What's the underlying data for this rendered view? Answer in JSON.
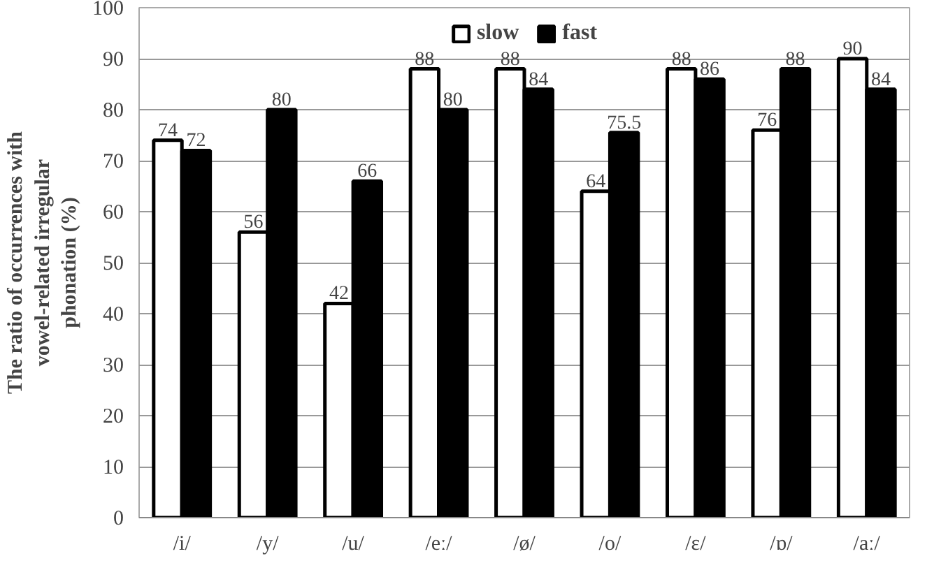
{
  "chart_data": {
    "type": "bar",
    "ylabel": "The ratio of occurrences with\nvowel-related irregular\nphonation (%)",
    "categories": [
      "/i/",
      "/y/",
      "/u/",
      "/eː/",
      "/ø/",
      "/o/",
      "/ɛ/",
      "/ɒ/",
      "/aː/"
    ],
    "series": [
      {
        "name": "slow",
        "color": "#ffffff",
        "values": [
          74,
          56,
          42,
          88,
          88,
          64,
          88,
          76,
          90
        ]
      },
      {
        "name": "fast",
        "color": "#000000",
        "values": [
          72,
          80,
          66,
          80,
          84,
          75.5,
          86,
          88,
          84
        ]
      }
    ],
    "ylim": [
      0,
      100
    ],
    "yticks": [
      0,
      10,
      20,
      30,
      40,
      50,
      60,
      70,
      80,
      90,
      100
    ],
    "grid": "y",
    "legend": "top",
    "data_labels": true
  }
}
